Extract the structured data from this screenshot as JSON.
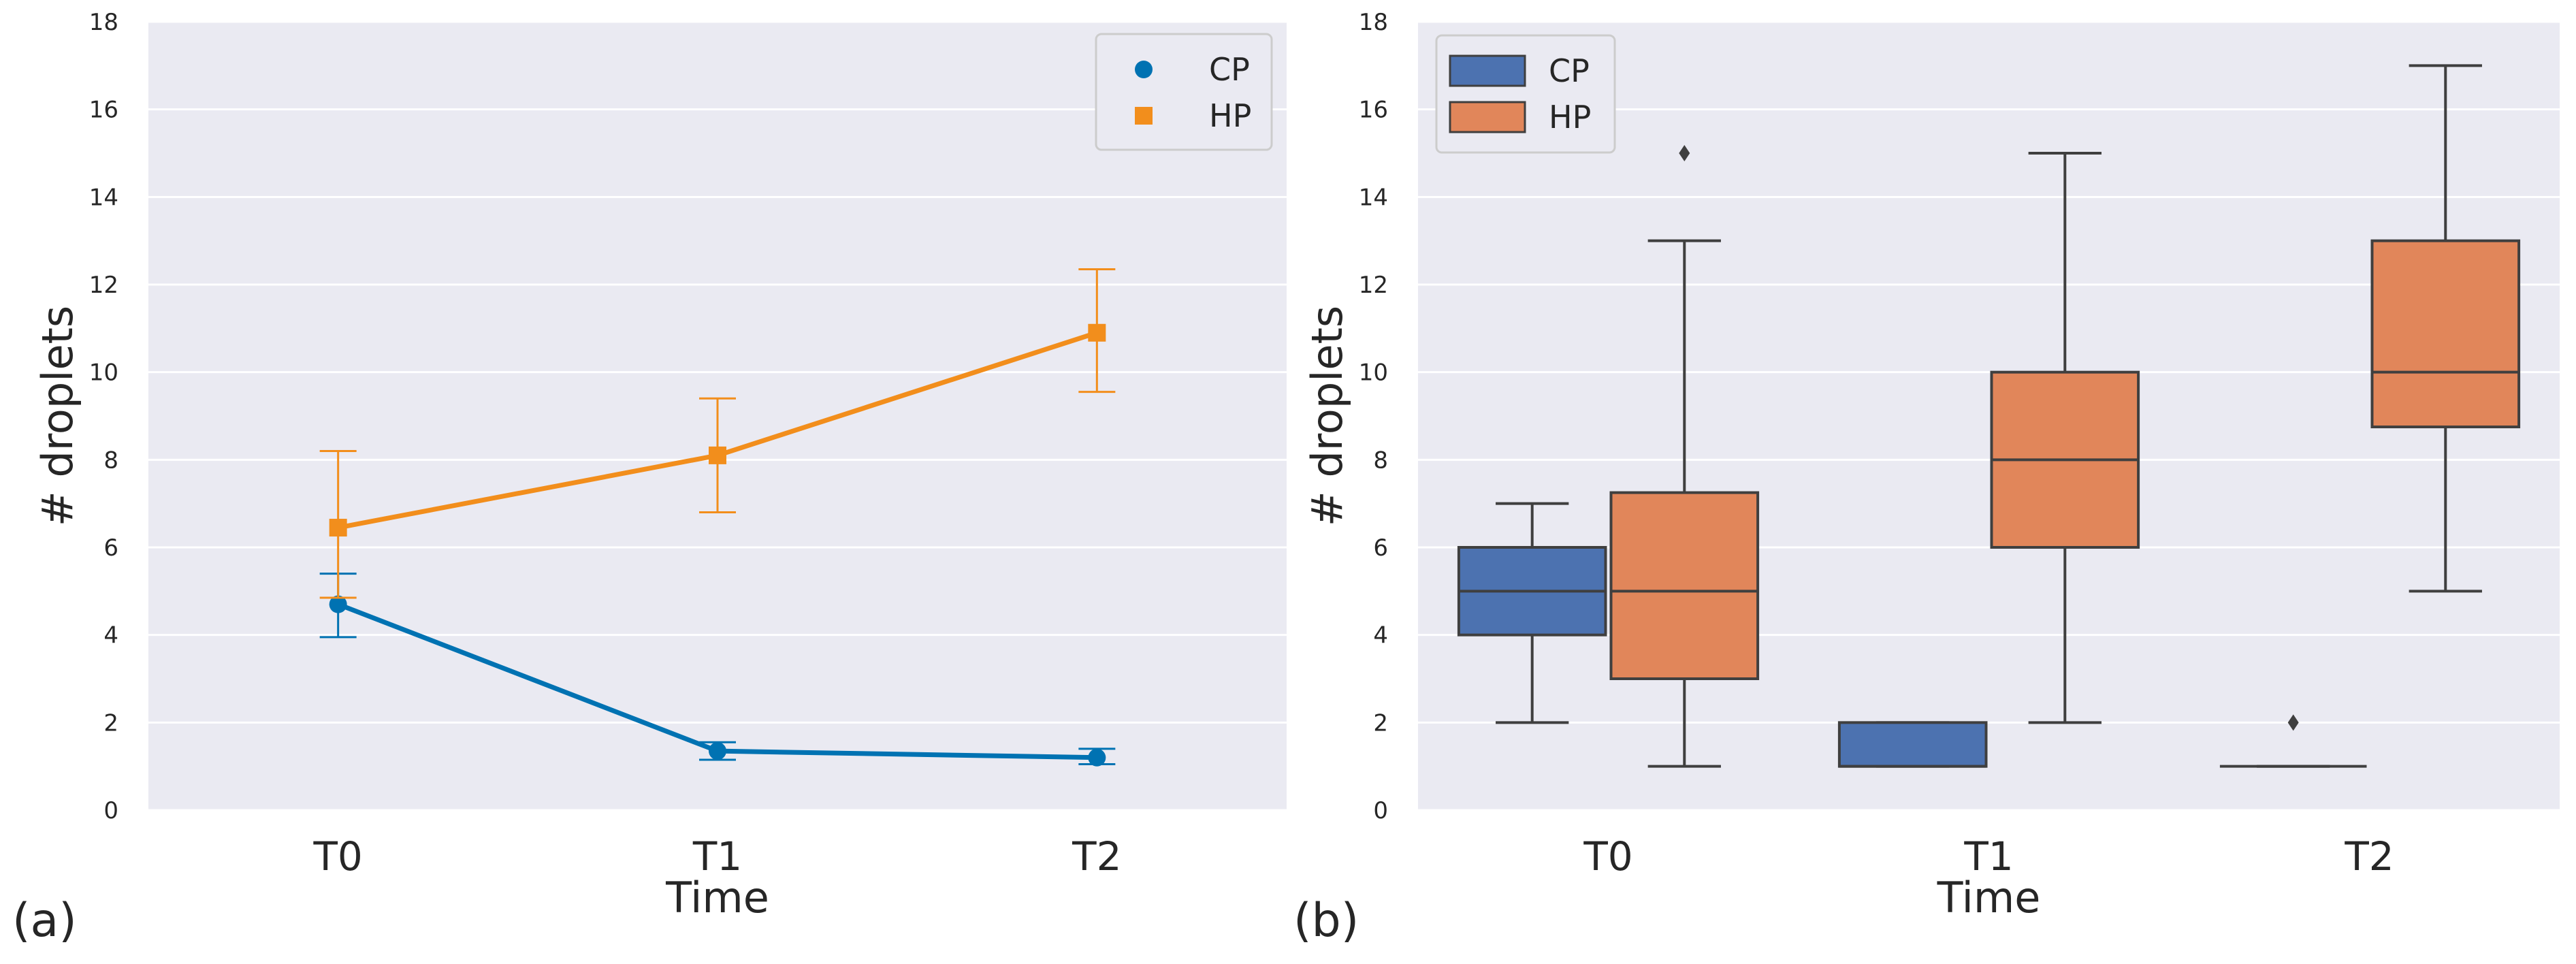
{
  "colors": {
    "plot_bg": "#EAEAF2",
    "grid": "#FFFFFF",
    "cp_line": "#0072B2",
    "hp_line": "#F28E1C",
    "cp_box": "#4C72B0",
    "hp_box": "#E1865A",
    "box_edge": "#3F3F3F"
  },
  "chart_data": [
    {
      "type": "line",
      "panel_label": "(a)",
      "xlabel": "Time",
      "ylabel": "# droplets",
      "categories": [
        "T0",
        "T1",
        "T2"
      ],
      "ylim": [
        0,
        18
      ],
      "yticks": [
        "0",
        "2",
        "4",
        "6",
        "8",
        "10",
        "12",
        "14",
        "16",
        "18"
      ],
      "grid": true,
      "legend": "top-right",
      "series": [
        {
          "name": "CP",
          "marker": "circle",
          "values": [
            4.7,
            1.35,
            1.2
          ],
          "err_low": [
            3.95,
            1.15,
            1.05
          ],
          "err_high": [
            5.4,
            1.55,
            1.4
          ]
        },
        {
          "name": "HP",
          "marker": "square",
          "values": [
            6.45,
            8.1,
            10.9
          ],
          "err_low": [
            4.85,
            6.8,
            9.55
          ],
          "err_high": [
            8.2,
            9.4,
            12.35
          ]
        }
      ]
    },
    {
      "type": "box",
      "panel_label": "(b)",
      "xlabel": "Time",
      "ylabel": "# droplets",
      "categories": [
        "T0",
        "T1",
        "T2"
      ],
      "ylim": [
        0,
        18
      ],
      "yticks": [
        "0",
        "2",
        "4",
        "6",
        "8",
        "10",
        "12",
        "14",
        "16",
        "18"
      ],
      "grid": true,
      "legend": "top-left",
      "series": [
        {
          "name": "CP",
          "boxes": [
            {
              "whislo": 2,
              "q1": 4,
              "med": 5,
              "q3": 6,
              "whishi": 7,
              "fliers": []
            },
            {
              "whislo": 1,
              "q1": 1,
              "med": 1,
              "q3": 2,
              "whishi": 2,
              "fliers": []
            },
            {
              "whislo": 1,
              "q1": 1,
              "med": 1,
              "q3": 1,
              "whishi": 1,
              "fliers": [
                2
              ]
            }
          ]
        },
        {
          "name": "HP",
          "boxes": [
            {
              "whislo": 1,
              "q1": 3,
              "med": 5,
              "q3": 7.25,
              "whishi": 13,
              "fliers": [
                15
              ]
            },
            {
              "whislo": 2,
              "q1": 6,
              "med": 8,
              "q3": 10,
              "whishi": 15,
              "fliers": []
            },
            {
              "whislo": 5,
              "q1": 8.75,
              "med": 10,
              "q3": 13,
              "whishi": 17,
              "fliers": []
            }
          ]
        }
      ]
    }
  ]
}
